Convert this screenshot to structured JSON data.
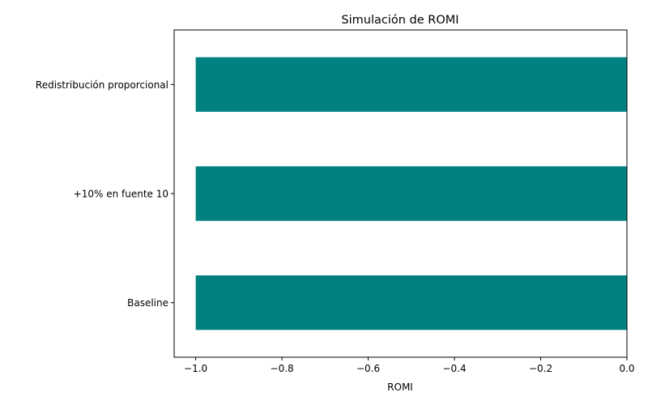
{
  "chart_data": {
    "type": "bar",
    "orientation": "horizontal",
    "title": "Simulación de ROMI",
    "xlabel": "ROMI",
    "ylabel": "",
    "categories": [
      "Baseline",
      "+10% en fuente 10",
      "Redistribución proporcional"
    ],
    "values": [
      -1.0,
      -1.0,
      -1.0
    ],
    "xlim": [
      -1.05,
      0.0
    ],
    "xticks": [
      -1.0,
      -0.8,
      -0.6,
      -0.4,
      -0.2,
      0.0
    ],
    "xtick_labels": [
      "−1.0",
      "−0.8",
      "−0.6",
      "−0.4",
      "−0.2",
      "0.0"
    ],
    "grid": false,
    "legend": "none",
    "bar_color": "#008080"
  }
}
